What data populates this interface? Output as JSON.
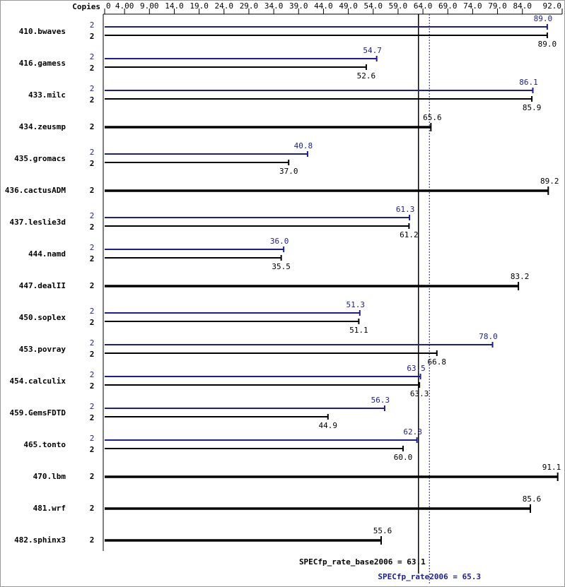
{
  "chart_data": {
    "type": "bar",
    "copies_header": "Copies",
    "categories": [
      "410.bwaves",
      "416.gamess",
      "433.milc",
      "434.zeusmp",
      "435.gromacs",
      "436.cactusADM",
      "437.leslie3d",
      "444.namd",
      "447.dealII",
      "450.soplex",
      "453.povray",
      "454.calculix",
      "459.GemsFDTD",
      "465.tonto",
      "470.lbm",
      "481.wrf",
      "482.sphinx3"
    ],
    "series": [
      {
        "color": "#1c1c99",
        "copies": [
          2,
          2,
          2,
          null,
          2,
          null,
          2,
          2,
          null,
          2,
          2,
          2,
          2,
          2,
          null,
          null,
          null
        ],
        "values": [
          89.0,
          54.7,
          86.1,
          null,
          40.8,
          null,
          61.3,
          36.0,
          null,
          51.3,
          78.0,
          63.5,
          56.3,
          62.8,
          null,
          null,
          null
        ],
        "value_labels": [
          "89.0",
          "54.7",
          "86.1",
          null,
          "40.8",
          null,
          "61.3",
          "36.0",
          null,
          "51.3",
          "78.0",
          "63.5",
          "56.3",
          "62.8",
          null,
          null,
          null
        ]
      },
      {
        "color": "#000000",
        "copies": [
          2,
          2,
          2,
          2,
          2,
          2,
          2,
          2,
          2,
          2,
          2,
          2,
          2,
          2,
          2,
          2,
          2
        ],
        "values": [
          89.0,
          52.6,
          85.9,
          65.6,
          37.0,
          89.2,
          61.2,
          35.5,
          83.2,
          51.1,
          66.8,
          63.3,
          44.9,
          60.0,
          91.1,
          85.6,
          55.6
        ],
        "value_labels": [
          "89.0",
          "52.6",
          "85.9",
          "65.6",
          "37.0",
          "89.2",
          "61.2",
          "35.5",
          "83.2",
          "51.1",
          "66.8",
          "63.3",
          "44.9",
          "60.0",
          "91.1",
          "85.6",
          "55.6"
        ]
      }
    ],
    "xlim": [
      0,
      92
    ],
    "xticks": [
      0,
      {
        "value": 4,
        "label": "4.00"
      },
      {
        "value": 9,
        "label": "9.00"
      },
      {
        "value": 14,
        "label": "14.0"
      },
      {
        "value": 19,
        "label": "19.0"
      },
      {
        "value": 24,
        "label": "24.0"
      },
      {
        "value": 29,
        "label": "29.0"
      },
      {
        "value": 34,
        "label": "34.0"
      },
      {
        "value": 39,
        "label": "39.0"
      },
      {
        "value": 44,
        "label": "44.0"
      },
      {
        "value": 49,
        "label": "49.0"
      },
      {
        "value": 54,
        "label": "54.0"
      },
      {
        "value": 59,
        "label": "59.0"
      },
      {
        "value": 64,
        "label": "64.0"
      },
      {
        "value": 69,
        "label": "69.0"
      },
      {
        "value": 74,
        "label": "74.0"
      },
      {
        "value": 79,
        "label": "79.0"
      },
      {
        "value": 84,
        "label": "84.0"
      },
      {
        "value": 92,
        "label": "92.0"
      }
    ],
    "base_ref": {
      "value": 63.1,
      "label": "SPECfp_rate_base2006 = 63.1"
    },
    "peak_ref": {
      "value": 65.3,
      "label": "SPECfp_rate2006 = 65.3"
    }
  }
}
